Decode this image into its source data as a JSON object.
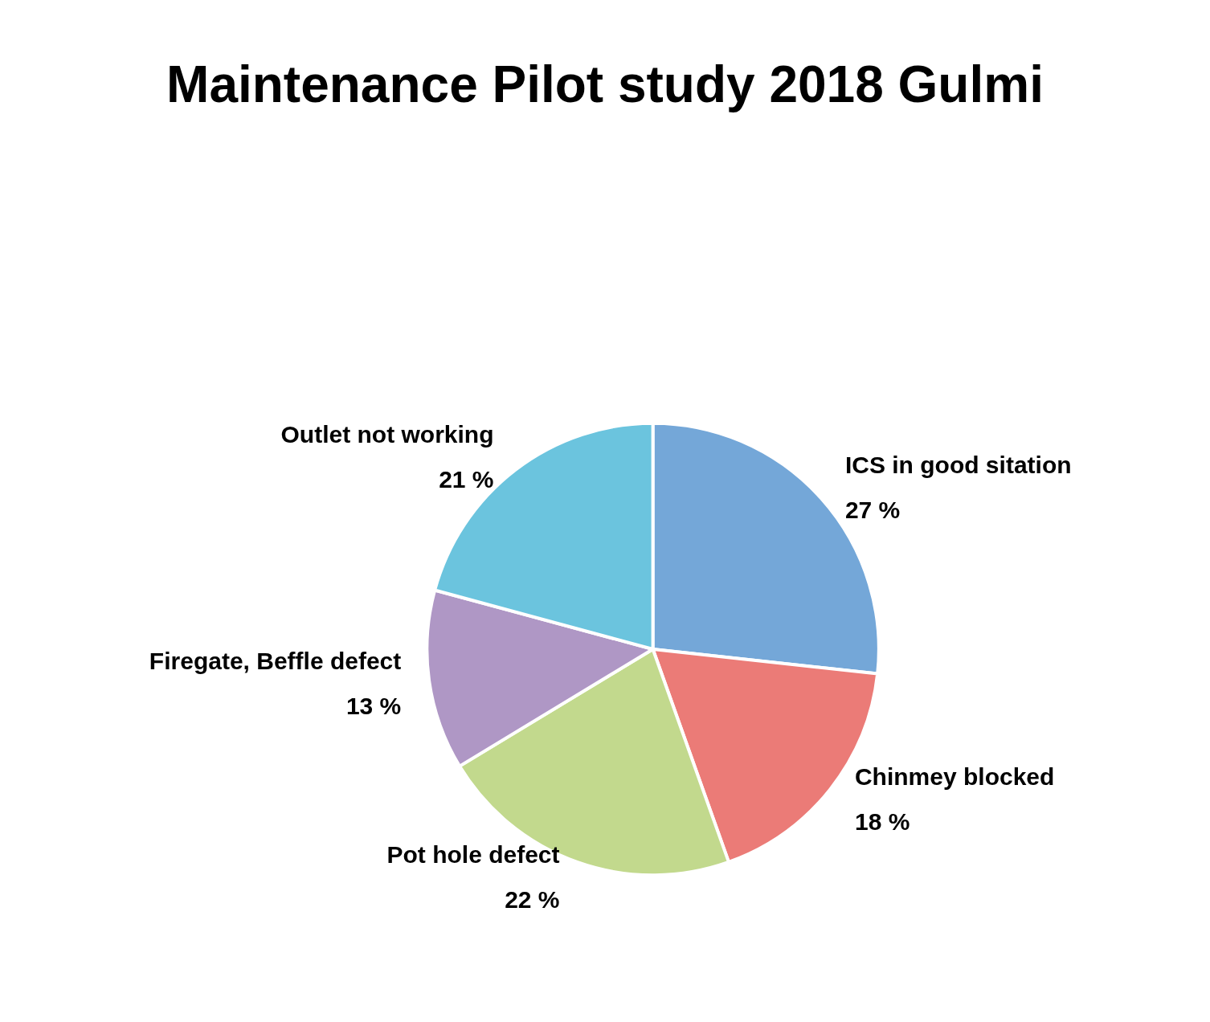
{
  "chart_data": {
    "type": "pie",
    "title": "Maintenance Pilot study 2018 Gulmi",
    "categories": [
      "ICS in good sitation",
      "Chinmey blocked",
      "Pot hole defect",
      "Firegate, Beffle defect",
      "Outlet not working"
    ],
    "values": [
      27,
      18,
      22,
      13,
      21
    ],
    "value_labels": [
      "27 %",
      "18 %",
      "22 %",
      "13 %",
      "21 %"
    ],
    "colors": [
      "#74a7d8",
      "#eb7b77",
      "#c2d98d",
      "#af97c5",
      "#6bc4de"
    ],
    "legend": false
  }
}
